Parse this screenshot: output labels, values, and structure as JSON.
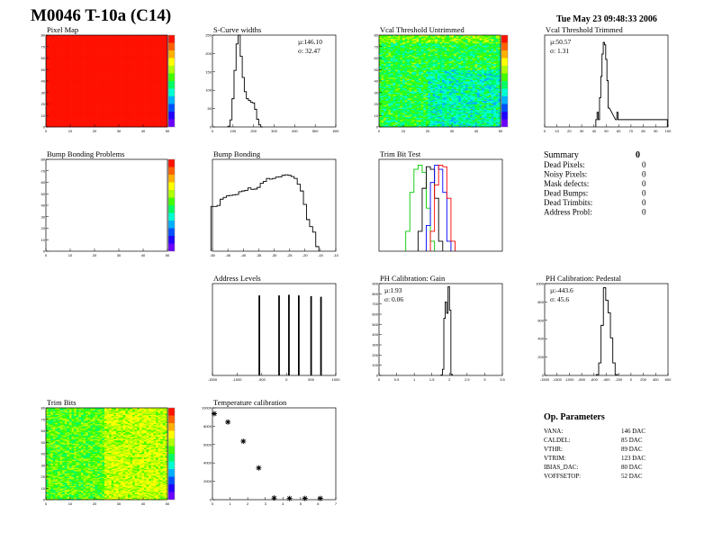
{
  "header": {
    "title": "M0046 T-10a (C14)",
    "date": "Tue May 23 09:48:33 2006"
  },
  "colors": {
    "frame": "#000000",
    "palette": [
      "#6a00ff",
      "#2000ff",
      "#0050ff",
      "#00b0ff",
      "#00ffd0",
      "#00ff60",
      "#40ff00",
      "#b0ff00",
      "#ffff00",
      "#ffb000",
      "#ff6000",
      "#ff1000"
    ]
  },
  "summary": {
    "title": "Summary",
    "total": "0",
    "rows": [
      {
        "label": "Dead Pixels:",
        "value": "0"
      },
      {
        "label": "Noisy Pixels:",
        "value": "0"
      },
      {
        "label": "Mask defects:",
        "value": "0"
      },
      {
        "label": "Dead Bumps:",
        "value": "0"
      },
      {
        "label": "Dead Trimbits:",
        "value": "0"
      },
      {
        "label": "Address Probl:",
        "value": "0"
      }
    ]
  },
  "op_params": {
    "title": "Op. Parameters",
    "rows": [
      {
        "label": "VANA:",
        "value": "146 DAC"
      },
      {
        "label": "CALDEL:",
        "value": "85 DAC"
      },
      {
        "label": "VTHR:",
        "value": "89 DAC"
      },
      {
        "label": "VTRIM:",
        "value": "123 DAC"
      },
      {
        "label": "IBIAS_DAC:",
        "value": "80 DAC"
      },
      {
        "label": "VOFFSETOP:",
        "value": "52 DAC"
      }
    ]
  },
  "chart_data": [
    {
      "id": "pixmap",
      "type": "heatmap",
      "title": "Pixel Map",
      "xlim": [
        0,
        52
      ],
      "ylim": [
        0,
        80
      ],
      "zlim": [
        0,
        10
      ],
      "uniform_value": 10,
      "xticks": [
        "0",
        "10",
        "20",
        "30",
        "40",
        "50"
      ],
      "yticks": [
        "0",
        "10",
        "20",
        "30",
        "40",
        "50",
        "60",
        "70",
        "80"
      ]
    },
    {
      "id": "scurve",
      "type": "bar",
      "title": "S-Curve widths",
      "stats": [
        "µ:146.10",
        "σ: 32.47"
      ],
      "xlim": [
        0,
        600
      ],
      "ylim": [
        0,
        260
      ],
      "xticks": [
        "0",
        "100",
        "200",
        "300",
        "400",
        "500",
        "600"
      ],
      "yticks": [
        "0",
        "50",
        "100",
        "150",
        "200",
        "250"
      ],
      "x": [
        80,
        90,
        100,
        110,
        120,
        130,
        140,
        150,
        160,
        170,
        180,
        190,
        200,
        210,
        220,
        230,
        240
      ],
      "values": [
        2,
        20,
        80,
        160,
        235,
        265,
        200,
        140,
        100,
        80,
        75,
        70,
        68,
        50,
        22,
        6,
        0
      ]
    },
    {
      "id": "vcalu",
      "type": "heatmap",
      "title": "Vcal Threshold Untrimmed",
      "xlim": [
        0,
        52
      ],
      "ylim": [
        0,
        80
      ],
      "zlim": [
        85,
        130
      ],
      "xticks": [
        "0",
        "10",
        "20",
        "30",
        "40",
        "50"
      ],
      "yticks": [
        "0",
        "10",
        "20",
        "30",
        "40",
        "50",
        "60",
        "70",
        "80"
      ]
    },
    {
      "id": "vcalt",
      "type": "bar",
      "log": true,
      "title": "Vcal Threshold Trimmed",
      "stats": [
        "µ:50.57",
        "σ: 1.31"
      ],
      "xlim": [
        0,
        100
      ],
      "ylim": [
        0.5,
        3000
      ],
      "xticks": [
        "0",
        "10",
        "20",
        "30",
        "40",
        "50",
        "60",
        "70",
        "80",
        "90",
        "100"
      ],
      "x": [
        42,
        43,
        44,
        45,
        46,
        47,
        48,
        49,
        50,
        51,
        52,
        58,
        59,
        60,
        62,
        63,
        99
      ],
      "values": [
        1,
        2,
        1,
        8,
        60,
        500,
        1500,
        1200,
        300,
        40,
        3,
        1,
        2,
        1,
        1,
        1,
        1
      ]
    },
    {
      "id": "bumpp",
      "type": "heatmap",
      "title": "Bump Bonding Problems",
      "xlim": [
        0,
        52
      ],
      "ylim": [
        0,
        80
      ],
      "zlim": [
        -2,
        2
      ],
      "empty": true,
      "xticks": [
        "0",
        "10",
        "20",
        "30",
        "40",
        "50"
      ],
      "yticks": [
        "0",
        "10",
        "20",
        "30",
        "40",
        "50",
        "60",
        "70",
        "80"
      ]
    },
    {
      "id": "bump",
      "type": "bar",
      "log": true,
      "title": "Bump Bonding",
      "xlim": [
        -50,
        -10
      ],
      "ylim": [
        0.5,
        400
      ],
      "xticks": [
        "-50",
        "-45",
        "-40",
        "-35",
        "-30",
        "-25",
        "-20",
        "-15",
        "-10"
      ],
      "x": [
        -50,
        -49,
        -48,
        -47,
        -46,
        -45,
        -44,
        -43,
        -42,
        -41,
        -40,
        -39,
        -38,
        -37,
        -36,
        -35,
        -34,
        -33,
        -32,
        -31,
        -30,
        -29,
        -28,
        -27,
        -26,
        -25,
        -24,
        -23,
        -22,
        -21,
        -20,
        -19,
        -18,
        -17,
        -16
      ],
      "values": [
        13,
        13,
        14,
        22,
        25,
        28,
        29,
        30,
        31,
        38,
        40,
        42,
        50,
        45,
        46,
        52,
        70,
        80,
        100,
        95,
        100,
        110,
        112,
        125,
        130,
        125,
        115,
        100,
        65,
        40,
        15,
        5,
        3,
        2,
        0.7
      ]
    },
    {
      "id": "trim",
      "type": "bar",
      "log": true,
      "title": "Trim Bit Test",
      "xlim": [
        0,
        60
      ],
      "ylim": [
        0.5,
        300
      ],
      "colors": [
        "#00cc00",
        "#000000",
        "#0000ff",
        "#ff0000"
      ],
      "series": [
        {
          "x": [
            14,
            16,
            18,
            20,
            22,
            24,
            26
          ],
          "values": [
            2,
            30,
            150,
            200,
            120,
            10,
            1
          ]
        },
        {
          "x": [
            20,
            22,
            24,
            26,
            28,
            30
          ],
          "values": [
            2,
            40,
            180,
            150,
            20,
            1
          ]
        },
        {
          "x": [
            24,
            26,
            28,
            30,
            32,
            34
          ],
          "values": [
            3,
            60,
            200,
            150,
            30,
            1
          ]
        },
        {
          "x": [
            26,
            28,
            30,
            32,
            34,
            36
          ],
          "values": [
            2,
            50,
            200,
            180,
            20,
            1
          ]
        }
      ]
    },
    {
      "id": "addr",
      "type": "bar",
      "log": true,
      "title": "Address Levels",
      "xlim": [
        -1500,
        1000
      ],
      "ylim": [
        0.5,
        500
      ],
      "xticks": [
        "-1500",
        "-1000",
        "-500",
        "0",
        "500",
        "1000"
      ],
      "x": [
        -550,
        -150,
        50,
        250,
        500,
        700
      ],
      "values": [
        200,
        200,
        210,
        200,
        190,
        180
      ]
    },
    {
      "id": "phgain",
      "type": "bar",
      "title": "PH Calibration: Gain",
      "stats": [
        "µ:1.93",
        "σ: 0.06"
      ],
      "xlim": [
        0,
        3.5
      ],
      "ylim": [
        0,
        900
      ],
      "xticks": [
        "0",
        "0.5",
        "1",
        "1.5",
        "2",
        "2.5",
        "3",
        "3.5"
      ],
      "yticks": [
        "0",
        "100",
        "200",
        "300",
        "400",
        "500",
        "600",
        "700",
        "800",
        "900"
      ],
      "x": [
        1.78,
        1.82,
        1.86,
        1.9,
        1.94,
        1.98,
        2.02,
        2.06
      ],
      "values": [
        5,
        60,
        560,
        720,
        610,
        870,
        640,
        10
      ]
    },
    {
      "id": "phped",
      "type": "bar",
      "title": "PH Calibration: Pedestal",
      "stats": [
        "µ:-443.6",
        "σ: 45.6"
      ],
      "xlim": [
        -1500,
        600
      ],
      "ylim": [
        0,
        1100
      ],
      "xticks": [
        "-1500",
        "-1300",
        "-1000",
        "-800",
        "-600",
        "-400",
        "-200",
        "0",
        "200",
        "400",
        "600"
      ],
      "yticks": [
        "0",
        "200",
        "400",
        "600",
        "800",
        "1000"
      ],
      "x": [
        -600,
        -560,
        -520,
        -480,
        -440,
        -400,
        -360,
        -320,
        -280
      ],
      "values": [
        10,
        150,
        600,
        1050,
        900,
        750,
        450,
        150,
        10
      ]
    },
    {
      "id": "trimbits",
      "type": "heatmap",
      "title": "Trim Bits",
      "xlim": [
        0,
        52
      ],
      "ylim": [
        0,
        80
      ],
      "zlim": [
        0,
        15
      ],
      "xticks": [
        "0",
        "10",
        "20",
        "30",
        "40",
        "50"
      ],
      "yticks": [
        "0",
        "10",
        "20",
        "30",
        "40",
        "50",
        "60",
        "70",
        "80"
      ]
    },
    {
      "id": "temp",
      "type": "scatter",
      "title": "Temperature calibration",
      "xlim": [
        0,
        8
      ],
      "ylim": [
        0,
        11000
      ],
      "xticks": [
        "0",
        "1",
        "2",
        "3",
        "4",
        "5",
        "6",
        "7"
      ],
      "yticks": [
        "0",
        "2000",
        "4000",
        "6000",
        "8000",
        "10000"
      ],
      "x": [
        0,
        1,
        2,
        3,
        4,
        5,
        6,
        7
      ],
      "values": [
        10300,
        9300,
        7000,
        3800,
        200,
        150,
        150,
        150
      ]
    }
  ]
}
